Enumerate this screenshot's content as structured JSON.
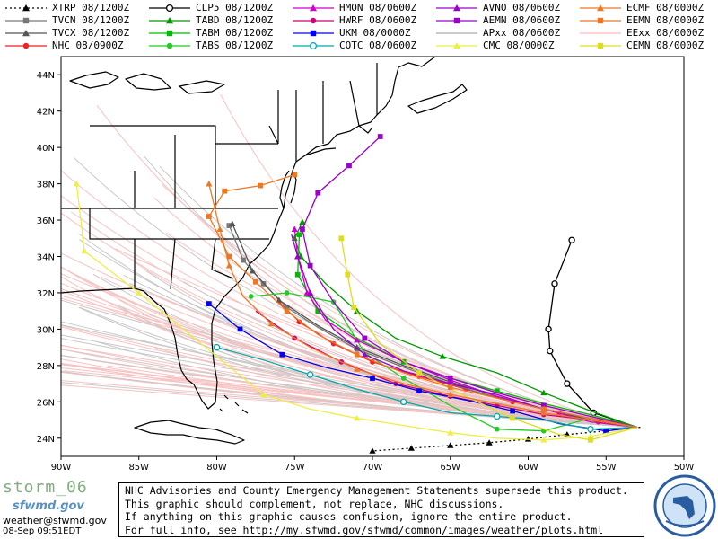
{
  "legend": [
    {
      "label": "XTRP 08/1200Z",
      "color": "#000000",
      "marker": "tri",
      "dash": "2,3"
    },
    {
      "label": "TVCN 08/1200Z",
      "color": "#777777",
      "marker": "square"
    },
    {
      "label": "TVCX 08/1200Z",
      "color": "#555555",
      "marker": "tri"
    },
    {
      "label": "NHC 08/0900Z",
      "color": "#ee2222",
      "marker": "circle"
    },
    {
      "label": "CLP5 08/1200Z",
      "color": "#000000",
      "marker": "ring"
    },
    {
      "label": "TABD 08/1200Z",
      "color": "#009900",
      "marker": "tri"
    },
    {
      "label": "TABM 08/1200Z",
      "color": "#00bb00",
      "marker": "square"
    },
    {
      "label": "TABS 08/1200Z",
      "color": "#22cc22",
      "marker": "circle"
    },
    {
      "label": "HMON 08/0600Z",
      "color": "#cc00cc",
      "marker": "tri"
    },
    {
      "label": "HWRF 08/0600Z",
      "color": "#cc0077",
      "marker": "circle"
    },
    {
      "label": "UKM  08/0000Z",
      "color": "#0000ee",
      "marker": "square"
    },
    {
      "label": "COTC 08/0600Z",
      "color": "#00aaaa",
      "marker": "ring"
    },
    {
      "label": "AVNO 08/0600Z",
      "color": "#9900cc",
      "marker": "tri"
    },
    {
      "label": "AEMN 08/0600Z",
      "color": "#9900cc",
      "marker": "square"
    },
    {
      "label": "APxx 08/0600Z",
      "color": "#aaaaaa",
      "marker": "none"
    },
    {
      "label": "CMC  08/0000Z",
      "color": "#eeee44",
      "marker": "tri"
    },
    {
      "label": "ECMF 08/0000Z",
      "color": "#ee7722",
      "marker": "tri"
    },
    {
      "label": "EEMN 08/0000Z",
      "color": "#ee7722",
      "marker": "square"
    },
    {
      "label": "EExx 08/0000Z",
      "color": "#ffbbbb",
      "marker": "none"
    },
    {
      "label": "CEMN 08/0000Z",
      "color": "#dddd22",
      "marker": "square"
    }
  ],
  "map": {
    "lon_min": -90,
    "lon_max": -50,
    "lat_min": 23,
    "lat_max": 45,
    "lon_ticks": [
      "90W",
      "85W",
      "80W",
      "75W",
      "70W",
      "65W",
      "60W",
      "55W",
      "50W"
    ],
    "lat_ticks": [
      "24N",
      "26N",
      "28N",
      "30N",
      "32N",
      "34N",
      "36N",
      "38N",
      "40N",
      "42N",
      "44N"
    ],
    "tracks": [
      {
        "model": "XTRP",
        "color": "#000000",
        "marker": "tri",
        "dash": "2,3",
        "pts": [
          [
            -52.8,
            24.6
          ],
          [
            -55,
            24.4
          ],
          [
            -57.5,
            24.2
          ],
          [
            -60,
            23.95
          ],
          [
            -62.5,
            23.75
          ],
          [
            -65,
            23.6
          ],
          [
            -67.5,
            23.45
          ],
          [
            -70,
            23.3
          ]
        ],
        "mk": [
          1,
          2,
          3,
          4,
          5,
          6,
          7
        ]
      },
      {
        "model": "NHC",
        "color": "#ee2222",
        "marker": "circle",
        "pts": [
          [
            -53,
            24.6
          ],
          [
            -55.5,
            24.9
          ],
          [
            -58,
            25.4
          ],
          [
            -61,
            26.0
          ],
          [
            -64,
            26.7
          ],
          [
            -67,
            27.4
          ],
          [
            -70,
            28.2
          ],
          [
            -72.5,
            29.2
          ],
          [
            -74.7,
            30.4
          ],
          [
            -76,
            31.5
          ]
        ],
        "mk": [
          1,
          2,
          3,
          4,
          5,
          6,
          7,
          8
        ]
      },
      {
        "model": "TVCN",
        "color": "#777777",
        "marker": "square",
        "pts": [
          [
            -53,
            24.6
          ],
          [
            -56,
            25.0
          ],
          [
            -59,
            25.6
          ],
          [
            -62,
            26.2
          ],
          [
            -65,
            27.0
          ],
          [
            -68,
            27.9
          ],
          [
            -71,
            28.9
          ],
          [
            -73.5,
            30.1
          ],
          [
            -75.5,
            31.2
          ],
          [
            -77,
            32.5
          ],
          [
            -78.3,
            33.8
          ],
          [
            -79.2,
            35.7
          ]
        ],
        "mk": [
          2,
          4,
          6,
          8,
          9,
          10,
          11
        ]
      },
      {
        "model": "TVCX",
        "color": "#555555",
        "marker": "tri",
        "pts": [
          [
            -53,
            24.6
          ],
          [
            -56,
            25.0
          ],
          [
            -59,
            25.6
          ],
          [
            -62,
            26.3
          ],
          [
            -65,
            27.1
          ],
          [
            -68,
            28.0
          ],
          [
            -71,
            29.0
          ],
          [
            -73.5,
            30.2
          ],
          [
            -76,
            31.6
          ],
          [
            -77.7,
            33.2
          ],
          [
            -79,
            35.8
          ]
        ],
        "mk": [
          4,
          6,
          8,
          9,
          10
        ]
      },
      {
        "model": "CLP5",
        "color": "#000000",
        "marker": "ring",
        "pts": [
          [
            -53,
            24.6
          ],
          [
            -55.8,
            25.4
          ],
          [
            -57.5,
            27.0
          ],
          [
            -58.6,
            28.8
          ],
          [
            -58.7,
            30.0
          ],
          [
            -58.3,
            32.5
          ],
          [
            -57.2,
            34.9
          ]
        ],
        "mk": [
          1,
          2,
          3,
          4,
          5,
          6
        ]
      },
      {
        "model": "TABD",
        "color": "#009900",
        "marker": "tri",
        "pts": [
          [
            -53,
            24.6
          ],
          [
            -56,
            25.5
          ],
          [
            -59,
            26.5
          ],
          [
            -62,
            27.6
          ],
          [
            -65.5,
            28.5
          ],
          [
            -68.5,
            29.5
          ],
          [
            -71,
            31.0
          ],
          [
            -73,
            32.5
          ],
          [
            -74.6,
            34.0
          ],
          [
            -75,
            35.0
          ],
          [
            -74.5,
            35.9
          ]
        ],
        "mk": [
          2,
          4,
          6,
          8,
          9,
          10
        ]
      },
      {
        "model": "TABM",
        "color": "#00bb00",
        "marker": "square",
        "pts": [
          [
            -53,
            24.6
          ],
          [
            -56,
            25.3
          ],
          [
            -59,
            25.9
          ],
          [
            -62,
            26.6
          ],
          [
            -65,
            27.3
          ],
          [
            -68,
            28.2
          ],
          [
            -71,
            29.5
          ],
          [
            -73.5,
            31.0
          ],
          [
            -74.8,
            33.0
          ],
          [
            -74.7,
            35.2
          ]
        ],
        "mk": [
          3,
          5,
          7,
          8,
          9
        ]
      },
      {
        "model": "TABS",
        "color": "#22cc22",
        "marker": "circle",
        "pts": [
          [
            -53,
            24.6
          ],
          [
            -56,
            25.1
          ],
          [
            -59,
            24.4
          ],
          [
            -62,
            24.5
          ],
          [
            -65,
            25.8
          ],
          [
            -68,
            27.3
          ],
          [
            -70.5,
            28.7
          ],
          [
            -72.5,
            31.5
          ],
          [
            -75.5,
            32.0
          ],
          [
            -77.8,
            31.8
          ]
        ],
        "mk": [
          2,
          3,
          5,
          7,
          8,
          9
        ]
      },
      {
        "model": "HMON",
        "color": "#cc00cc",
        "marker": "tri",
        "pts": [
          [
            -53,
            24.6
          ],
          [
            -56,
            24.9
          ],
          [
            -59,
            25.6
          ],
          [
            -62,
            26.3
          ],
          [
            -65,
            27.2
          ],
          [
            -68,
            28.2
          ],
          [
            -71,
            29.4
          ],
          [
            -73,
            30.5
          ],
          [
            -74.2,
            32.0
          ],
          [
            -74.8,
            34.0
          ],
          [
            -75.0,
            35.5
          ]
        ],
        "mk": [
          2,
          4,
          6,
          8,
          9,
          10
        ]
      },
      {
        "model": "HWRF",
        "color": "#cc0077",
        "marker": "circle",
        "pts": [
          [
            -53,
            24.6
          ],
          [
            -56,
            25.0
          ],
          [
            -59,
            25.3
          ],
          [
            -62,
            25.8
          ],
          [
            -65,
            26.3
          ],
          [
            -68.5,
            27.0
          ],
          [
            -72,
            28.2
          ],
          [
            -75,
            29.5
          ],
          [
            -77.5,
            31.0
          ]
        ],
        "mk": [
          2,
          3,
          4,
          5,
          6,
          7
        ]
      },
      {
        "model": "UKM",
        "color": "#0000ee",
        "marker": "square",
        "pts": [
          [
            -53,
            24.6
          ],
          [
            -55,
            24.4
          ],
          [
            -58,
            24.8
          ],
          [
            -61,
            25.5
          ],
          [
            -64,
            26.1
          ],
          [
            -67,
            26.6
          ],
          [
            -70,
            27.3
          ],
          [
            -73,
            27.9
          ],
          [
            -75.8,
            28.6
          ],
          [
            -78.5,
            30.0
          ],
          [
            -80.5,
            31.4
          ]
        ],
        "mk": [
          1,
          3,
          5,
          6,
          8,
          9,
          10
        ]
      },
      {
        "model": "COTC",
        "color": "#00aaaa",
        "marker": "ring",
        "pts": [
          [
            -53,
            24.6
          ],
          [
            -56,
            24.5
          ],
          [
            -59,
            25.0
          ],
          [
            -62,
            25.2
          ],
          [
            -65,
            25.4
          ],
          [
            -68,
            26.0
          ],
          [
            -71,
            26.7
          ],
          [
            -74,
            27.5
          ],
          [
            -77,
            28.3
          ],
          [
            -80,
            29.0
          ]
        ],
        "mk": [
          1,
          3,
          5,
          7,
          9
        ]
      },
      {
        "model": "AVNO",
        "color": "#9900cc",
        "marker": "tri",
        "pts": [
          [
            -53,
            24.6
          ],
          [
            -56,
            25.1
          ],
          [
            -59,
            25.6
          ],
          [
            -62,
            26.4
          ],
          [
            -65,
            27.0
          ],
          [
            -68,
            27.7
          ],
          [
            -70.5,
            28.6
          ],
          [
            -72.5,
            30.0
          ],
          [
            -74,
            32.0
          ],
          [
            -74.8,
            34.0
          ],
          [
            -75.2,
            35.2
          ]
        ],
        "mk": [
          2,
          4,
          6,
          8,
          9
        ]
      },
      {
        "model": "AEMN",
        "color": "#9900cc",
        "marker": "square",
        "pts": [
          [
            -53,
            24.6
          ],
          [
            -56,
            25.2
          ],
          [
            -59,
            25.8
          ],
          [
            -62,
            26.5
          ],
          [
            -65,
            27.3
          ],
          [
            -68,
            28.2
          ],
          [
            -70.5,
            29.5
          ],
          [
            -72.5,
            31.5
          ],
          [
            -74,
            33.5
          ],
          [
            -74.5,
            35.5
          ],
          [
            -73.5,
            37.5
          ],
          [
            -71.5,
            39.0
          ],
          [
            -69.5,
            40.6
          ]
        ],
        "mk": [
          2,
          4,
          6,
          8,
          9,
          10,
          11,
          12
        ]
      },
      {
        "model": "CMC",
        "color": "#eeee44",
        "marker": "tri",
        "pts": [
          [
            -53,
            24.6
          ],
          [
            -56,
            24.1
          ],
          [
            -59,
            23.9
          ],
          [
            -62,
            24.0
          ],
          [
            -65,
            24.3
          ],
          [
            -68,
            24.7
          ],
          [
            -71,
            25.1
          ],
          [
            -74,
            25.6
          ],
          [
            -77,
            26.4
          ],
          [
            -80,
            28.5
          ],
          [
            -85,
            32.0
          ],
          [
            -88.5,
            34.3
          ],
          [
            -89,
            38.0
          ]
        ],
        "mk": [
          1,
          2,
          4,
          6,
          8,
          10,
          11,
          12
        ]
      },
      {
        "model": "CEMN",
        "color": "#dddd22",
        "marker": "square",
        "pts": [
          [
            -53,
            24.6
          ],
          [
            -56,
            23.9
          ],
          [
            -58,
            24.2
          ],
          [
            -61,
            25.1
          ],
          [
            -64,
            26.3
          ],
          [
            -67,
            27.6
          ],
          [
            -69.5,
            29.2
          ],
          [
            -71.2,
            31.2
          ],
          [
            -71.6,
            33.0
          ],
          [
            -72.0,
            35.0
          ]
        ],
        "mk": [
          1,
          3,
          5,
          7,
          8,
          9
        ]
      },
      {
        "model": "ECMF",
        "color": "#ee7722",
        "marker": "tri",
        "pts": [
          [
            -53,
            24.6
          ],
          [
            -56,
            25.0
          ],
          [
            -59,
            25.4
          ],
          [
            -62,
            25.9
          ],
          [
            -65,
            26.4
          ],
          [
            -68,
            27.0
          ],
          [
            -71,
            27.8
          ],
          [
            -74,
            29.0
          ],
          [
            -76.5,
            30.3
          ],
          [
            -78.3,
            31.8
          ],
          [
            -79.2,
            33.5
          ],
          [
            -79.8,
            35.5
          ],
          [
            -80.5,
            38.0
          ]
        ],
        "mk": [
          2,
          4,
          6,
          8,
          10,
          11,
          12
        ]
      },
      {
        "model": "EEMN",
        "color": "#ee7722",
        "marker": "square",
        "pts": [
          [
            -53,
            24.6
          ],
          [
            -56,
            25.1
          ],
          [
            -59,
            25.6
          ],
          [
            -62,
            26.2
          ],
          [
            -65,
            26.8
          ],
          [
            -68,
            27.6
          ],
          [
            -71,
            28.6
          ],
          [
            -73.5,
            29.7
          ],
          [
            -75.5,
            31.0
          ],
          [
            -77.5,
            32.6
          ],
          [
            -79.2,
            34.0
          ],
          [
            -80.5,
            36.2
          ],
          [
            -79.5,
            37.6
          ],
          [
            -77.2,
            37.9
          ],
          [
            -75.0,
            38.5
          ]
        ],
        "mk": [
          2,
          4,
          6,
          8,
          9,
          10,
          11,
          12,
          13,
          14
        ]
      }
    ]
  },
  "footer": {
    "storm": "storm_06",
    "logo": "sfwmd.gov",
    "email": "weather@sfwmd.gov",
    "timestamp": "08-Sep 09:51EDT",
    "lines": [
      "NHC Advisories and County Emergency Management Statements supersede this product.",
      "This graphic should complement, not replace, NHC discussions.",
      "If anything on this graphic causes confusion, ignore the entire product.",
      "For full info, see  http://my.sfwmd.gov/sfwmd/common/images/weather/plots.html"
    ]
  }
}
